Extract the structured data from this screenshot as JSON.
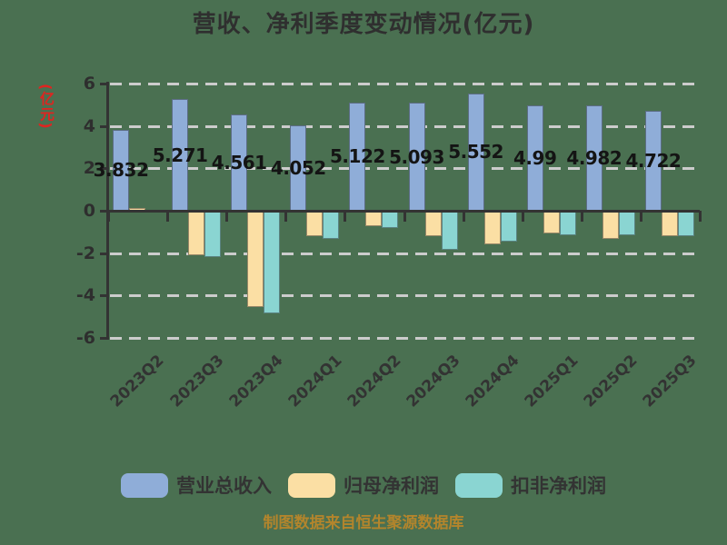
{
  "title": "营收、净利季度变动情况(亿元)",
  "y_axis_unit_label": "(亿元)",
  "source_note": "制图数据来自恒生聚源数据库",
  "colors": {
    "background": "#4a7051",
    "revenue_bar": "#8fadd8",
    "net_profit_bar": "#fbdfa4",
    "non_gaap_bar": "#8ad5d2",
    "axis": "#333333",
    "gridline": "#cccccc",
    "title_text": "#2f2f2f",
    "value_label_text": "#141414",
    "y_unit_label_text": "#e02420",
    "source_text": "#b3852c"
  },
  "chart_data": {
    "type": "bar",
    "title": "营收、净利季度变动情况(亿元)",
    "ylabel": "(亿元)",
    "ylim": [
      -6,
      6
    ],
    "y_ticks": [
      "6",
      "4",
      "2",
      "0",
      "-2",
      "-4",
      "-6"
    ],
    "grid": "dashed-horizontal",
    "legend_position": "bottom",
    "categories": [
      "2023Q2",
      "2023Q3",
      "2023Q4",
      "2024Q1",
      "2024Q2",
      "2024Q3",
      "2024Q4",
      "2025Q1",
      "2025Q2",
      "2025Q3"
    ],
    "series": [
      {
        "name": "营业总收入",
        "color": "#8fadd8",
        "values": [
          3.832,
          5.271,
          4.561,
          4.052,
          5.122,
          5.093,
          5.552,
          4.99,
          4.982,
          4.722
        ],
        "labels": [
          "3.832",
          "5.271",
          "4.561",
          "4.052",
          "5.122",
          "5.093",
          "5.552",
          "4.99",
          "4.982",
          "4.722"
        ]
      },
      {
        "name": "归母净利润",
        "color": "#fbdfa4",
        "values": [
          0.13,
          -2.1,
          -4.55,
          -1.2,
          -0.75,
          -1.2,
          -1.58,
          -1.08,
          -1.33,
          -1.2
        ]
      },
      {
        "name": "扣非净利润",
        "color": "#8ad5d2",
        "values": [
          -0.07,
          -2.2,
          -4.85,
          -1.31,
          -0.81,
          -1.85,
          -1.47,
          -1.15,
          -1.18,
          -1.2
        ]
      }
    ]
  }
}
